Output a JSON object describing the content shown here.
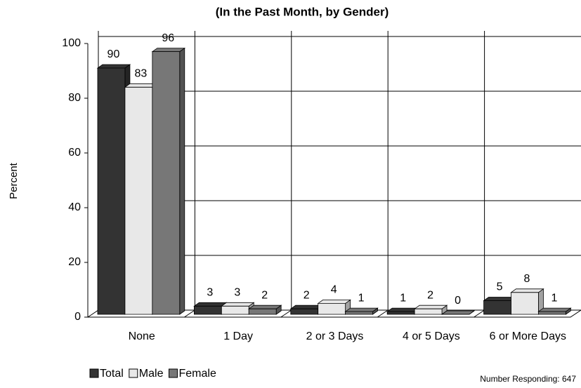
{
  "chart_data": {
    "type": "bar3d",
    "title": "(In the Past Month, by Gender)",
    "y_label": "Percent",
    "categories": [
      "None",
      "1 Day",
      "2 or 3 Days",
      "4 or 5 Days",
      "6 or More Days"
    ],
    "series": [
      {
        "name": "Total",
        "color": "#333333",
        "values": [
          90,
          3,
          2,
          1,
          5
        ]
      },
      {
        "name": "Male",
        "color": "#e8e8e8",
        "values": [
          83,
          3,
          4,
          2,
          8
        ]
      },
      {
        "name": "Female",
        "color": "#777777",
        "values": [
          96,
          2,
          1,
          0,
          1
        ]
      }
    ],
    "ylim": [
      0,
      100
    ],
    "yticks": [
      0,
      20,
      40,
      60,
      80,
      100
    ],
    "grid": true,
    "note": "Number Responding:  647"
  }
}
